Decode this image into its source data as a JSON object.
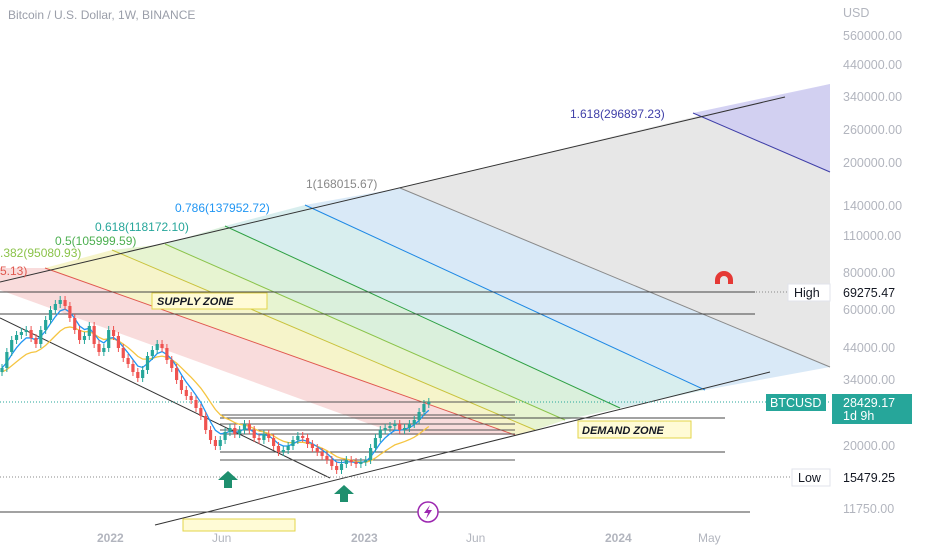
{
  "title": "Bitcoin / U.S. Dollar, 1W, BINANCE",
  "chart_data": {
    "type": "candlestick",
    "symbol": "BTCUSD",
    "y_axis": {
      "unit": "USD",
      "scale": "log",
      "ticks": [
        "560000.00",
        "440000.00",
        "340000.00",
        "260000.00",
        "200000.00",
        "140000.00",
        "110000.00",
        "80000.00",
        "60000.00",
        "44000.00",
        "34000.00",
        "20000.00",
        "11750.00"
      ]
    },
    "x_axis": {
      "ticks": [
        "2022",
        "Jun",
        "2023",
        "Jun",
        "2024",
        "May"
      ]
    },
    "price_tags": [
      {
        "name": "High",
        "value": "69275.47"
      },
      {
        "name": "BTCUSD",
        "value": "28429.17",
        "sub": "1d 9h"
      },
      {
        "name": "Low",
        "value": "15479.25"
      }
    ],
    "fib_levels": [
      {
        "label": "5.13)",
        "color": "#e0584f"
      },
      {
        "label": ".382(95080.93)",
        "color": "#8bc34a"
      },
      {
        "label": "0.5(105999.59)",
        "color": "#4caf50"
      },
      {
        "label": "0.618(118172.10)",
        "color": "#26a69a"
      },
      {
        "label": "0.786(137952.72)",
        "color": "#2196f3"
      },
      {
        "label": "1(168015.67)",
        "color": "#888888"
      },
      {
        "label": "1.618(296897.23)",
        "color": "#3f3fa8"
      }
    ],
    "annotations": [
      "SUPPLY ZONE",
      "DEMAND ZONE"
    ],
    "colors": {
      "up": "#26a69a",
      "down": "#ef5350",
      "ema": "#2196f3",
      "sma": "#f5c542",
      "accent": "#26a69a"
    }
  }
}
